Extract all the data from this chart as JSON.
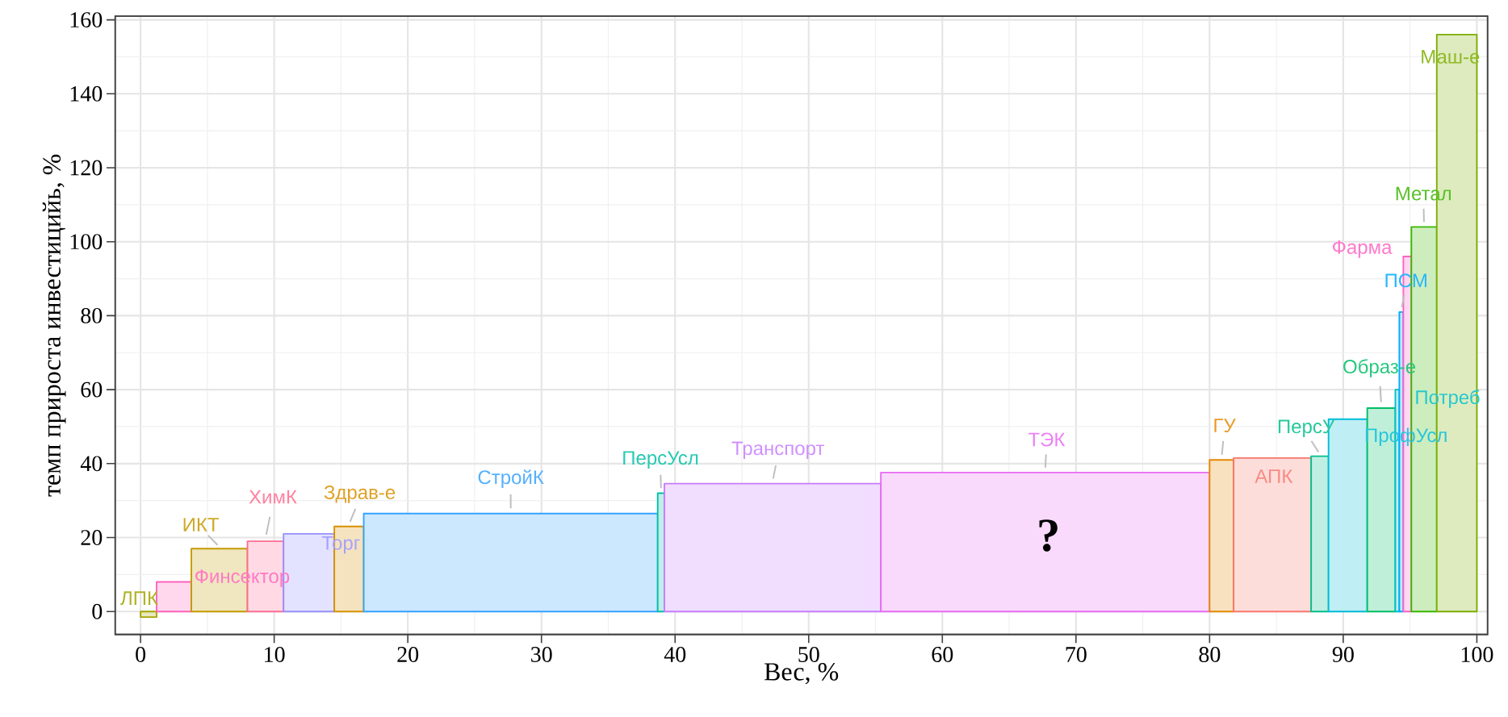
{
  "chart_data": {
    "type": "histogram",
    "xlabel": "Вес, %",
    "ylabel": "темп прироста инвестицийь, %",
    "bins": [
      0,
      1.2,
      3.8,
      8.0,
      10.7,
      14.5,
      16.7,
      38.7,
      39.2,
      55.4,
      80.0,
      81.8,
      87.6,
      88.9,
      91.8,
      93.9,
      94.2,
      94.5,
      95.1,
      97.0,
      100
    ],
    "values": [
      -1.5,
      8,
      17,
      19,
      21,
      23,
      26.5,
      32,
      34.6,
      37.6,
      41,
      41.5,
      42,
      52,
      55,
      60,
      81,
      96,
      104,
      156
    ],
    "colors": [
      "#a3a500",
      "#ff62bc",
      "#c49a00",
      "#ff6c91",
      "#9590ff",
      "#d89000",
      "#35a2ff",
      "#00c1a3",
      "#c77cff",
      "#e76bf3",
      "#e58700",
      "#f8766d",
      "#00c08b",
      "#00bcd8",
      "#00be67",
      "#00bfc4",
      "#00a9ff",
      "#ff61c3",
      "#39b600",
      "#7cae00"
    ],
    "annotations": [
      {
        "text": "ЛПК",
        "x": 0.6,
        "y": -1.5
      },
      {
        "text": "Финсектор",
        "x": 2.5,
        "y": 8
      },
      {
        "text": "ИКТ",
        "x": 5.9,
        "y": 17
      },
      {
        "text": "ХимК",
        "x": 9.35,
        "y": 19
      },
      {
        "text": "Торг",
        "x": 12.6,
        "y": 21
      },
      {
        "text": "Здрав-е",
        "x": 15.6,
        "y": 23
      },
      {
        "text": "СтройК",
        "x": 27.7,
        "y": 26.5
      },
      {
        "text": "ПерсУсл",
        "x": 38.95,
        "y": 32
      },
      {
        "text": "Транспорт",
        "x": 47.3,
        "y": 34.6
      },
      {
        "text": "ТЭК",
        "x": 67.7,
        "y": 37.6
      },
      {
        "text": "ГУ",
        "x": 80.9,
        "y": 41
      },
      {
        "text": "АПК",
        "x": 84.7,
        "y": 41.5
      },
      {
        "text": "ПерсУ",
        "x": 88.25,
        "y": 42
      },
      {
        "text": "ПрофУсл",
        "x": 90.35,
        "y": 52
      },
      {
        "text": "Образ-е",
        "x": 92.85,
        "y": 55
      },
      {
        "text": "Потреб",
        "x": 94.05,
        "y": 60
      },
      {
        "text": "ПСМ",
        "x": 94.35,
        "y": 81
      },
      {
        "text": "Фарма",
        "x": 94.8,
        "y": 96
      },
      {
        "text": "Метал",
        "x": 96.05,
        "y": 104
      },
      {
        "text": "Маш-е",
        "x": 98.5,
        "y": 156
      },
      "?"
    ],
    "xlim": [
      -1.9,
      100.8
    ],
    "ylim": [
      -6.2,
      161
    ],
    "xticks": [
      0,
      10,
      20,
      30,
      40,
      50,
      60,
      70,
      80,
      90,
      100
    ],
    "yticks": [
      0,
      20,
      40,
      60,
      80,
      100,
      120,
      140,
      160
    ],
    "grid": true
  }
}
